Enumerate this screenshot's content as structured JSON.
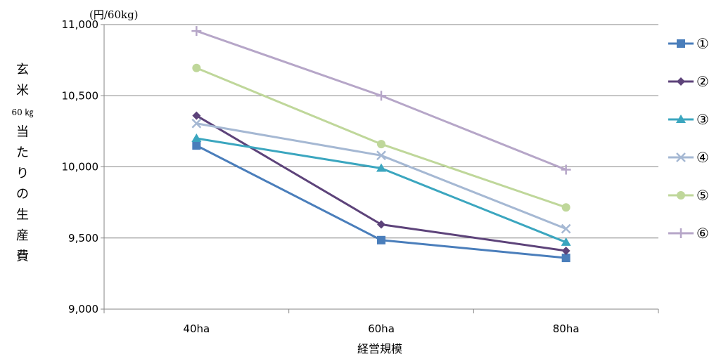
{
  "chart_data": {
    "type": "line",
    "unit_label": "(円/60kg)",
    "xlabel": "経営規模",
    "ylabel_chars": [
      "玄",
      "米",
      "60 ㎏",
      "当",
      "た",
      "り",
      "の",
      "生",
      "産",
      "費"
    ],
    "categories": [
      "40ha",
      "60ha",
      "80ha"
    ],
    "ylim": [
      9000,
      11000
    ],
    "yticks": [
      9000,
      9500,
      10000,
      10500,
      11000
    ],
    "ytick_labels": [
      "9,000",
      "9,500",
      "10,000",
      "10,500",
      "11,000"
    ],
    "grid": true,
    "legend_position": "right",
    "series": [
      {
        "name": "①",
        "values": [
          10150,
          9485,
          9360
        ],
        "color": "#4a7ebb",
        "marker": "square"
      },
      {
        "name": "②",
        "values": [
          10360,
          9595,
          9410
        ],
        "color": "#5d437a",
        "marker": "diamond"
      },
      {
        "name": "③",
        "values": [
          10200,
          9990,
          9470
        ],
        "color": "#3ba6bf",
        "marker": "triangle"
      },
      {
        "name": "④",
        "values": [
          10305,
          10080,
          9565
        ],
        "color": "#a5b8d3",
        "marker": "x"
      },
      {
        "name": "⑤",
        "values": [
          10695,
          10160,
          9715
        ],
        "color": "#bfd79a",
        "marker": "circle"
      },
      {
        "name": "⑥",
        "values": [
          10955,
          10500,
          9980
        ],
        "color": "#b6a6c8",
        "marker": "plus"
      }
    ]
  }
}
